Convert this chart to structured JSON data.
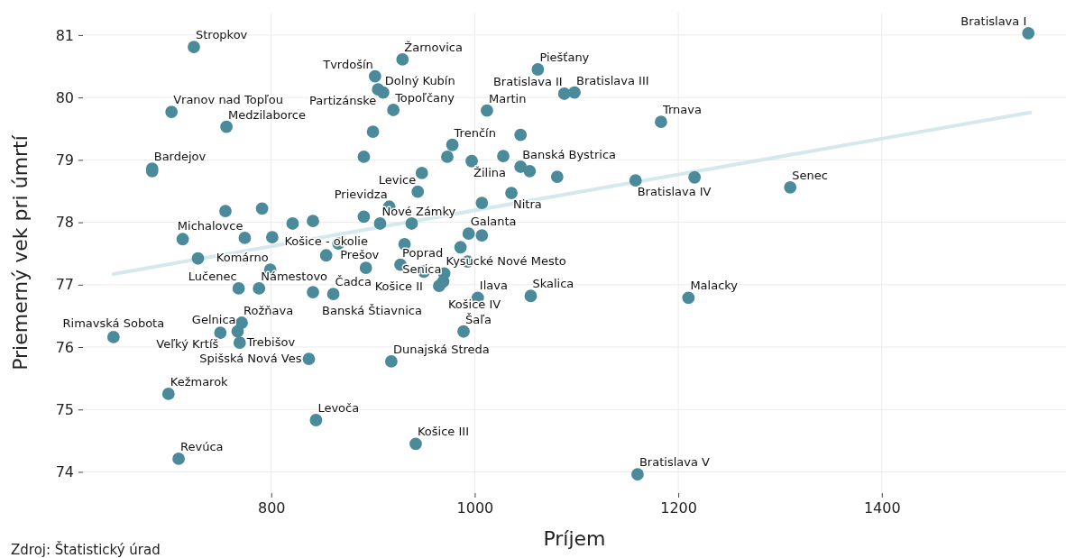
{
  "chart_data": {
    "type": "scatter",
    "xlabel": "Príjem",
    "ylabel": "Priemerný vek pri úmrtí",
    "xlim": [
      615,
      1581
    ],
    "ylim": [
      73.66,
      81.36
    ],
    "xticks": [
      800,
      1000,
      1200,
      1400
    ],
    "yticks": [
      74,
      75,
      76,
      77,
      78,
      79,
      80,
      81
    ],
    "grid": true,
    "series": [
      {
        "type": "line",
        "color": "#d4e8ee",
        "x": [
          645,
          1546
        ],
        "values": [
          77.17,
          79.76
        ]
      },
      {
        "color": "#4a8a9b",
        "marker": "circle",
        "x": [
          724,
          702,
          756,
          683,
          683,
          929,
          902,
          905,
          910,
          920,
          900,
          891,
          978,
          973,
          997,
          948,
          944,
          916,
          1007,
          1012,
          1062,
          1088,
          1098,
          1183,
          1045,
          1028,
          1045,
          1054,
          1081,
          1036,
          1158,
          1216,
          1310,
          1544,
          1210,
          1160,
          1055,
          1003,
          989,
          918,
          942,
          844,
          709,
          699,
          837,
          645,
          750,
          767,
          771,
          769,
          768,
          788,
          841,
          861,
          799,
          854,
          866,
          774,
          801,
          713,
          728,
          755,
          791,
          821,
          841,
          891,
          907,
          938,
          994,
          1007,
          986,
          931,
          927,
          893,
          950,
          970,
          965,
          969,
          993
        ],
        "values": [
          80.81,
          79.77,
          79.53,
          78.86,
          78.82,
          80.61,
          80.34,
          80.13,
          80.08,
          79.8,
          79.45,
          79.05,
          79.24,
          79.05,
          78.98,
          78.79,
          78.49,
          78.25,
          78.31,
          79.79,
          80.45,
          80.06,
          80.08,
          79.61,
          79.4,
          79.06,
          78.89,
          78.82,
          78.73,
          78.47,
          78.67,
          78.72,
          78.56,
          81.03,
          76.79,
          73.96,
          76.82,
          76.79,
          76.25,
          75.77,
          74.45,
          74.83,
          74.21,
          75.25,
          75.81,
          76.16,
          76.23,
          76.25,
          76.39,
          76.07,
          76.94,
          76.94,
          76.88,
          76.85,
          77.24,
          77.47,
          77.66,
          77.75,
          77.76,
          77.73,
          77.42,
          78.18,
          78.22,
          77.98,
          78.02,
          78.09,
          77.98,
          77.98,
          77.82,
          77.79,
          77.6,
          77.65,
          77.32,
          77.27,
          77.21,
          77.18,
          76.98,
          77.05,
          77.37
        ]
      }
    ],
    "annotations": [
      {
        "text": "Stropkov",
        "x": 724,
        "y": 80.81
      },
      {
        "text": "Vranov nad Topľou",
        "x": 702,
        "y": 79.77
      },
      {
        "text": "Medzilaborce",
        "x": 756,
        "y": 79.53
      },
      {
        "text": "Bardejov",
        "x": 683,
        "y": 78.86
      },
      {
        "text": "Žarnovica",
        "x": 929,
        "y": 80.61
      },
      {
        "text": "Tvrdošín",
        "x": 902,
        "y": 80.34
      },
      {
        "text": "Partizánske",
        "x": 905,
        "y": 80.13
      },
      {
        "text": "Dolný Kubín",
        "x": 910,
        "y": 80.08
      },
      {
        "text": "Topoľčany",
        "x": 920,
        "y": 79.8
      },
      {
        "text": "Trenčín",
        "x": 978,
        "y": 79.24
      },
      {
        "text": "Žilina",
        "x": 997,
        "y": 78.98
      },
      {
        "text": "Levice",
        "x": 944,
        "y": 78.49
      },
      {
        "text": "Prievidza",
        "x": 916,
        "y": 78.25
      },
      {
        "text": "Martin",
        "x": 1012,
        "y": 79.79
      },
      {
        "text": "Piešťany",
        "x": 1062,
        "y": 80.45
      },
      {
        "text": "Bratislava II",
        "x": 1088,
        "y": 80.06
      },
      {
        "text": "Bratislava III",
        "x": 1098,
        "y": 80.08
      },
      {
        "text": "Trnava",
        "x": 1183,
        "y": 79.61
      },
      {
        "text": "Banská Bystrica",
        "x": 1045,
        "y": 78.89
      },
      {
        "text": "Nitra",
        "x": 1036,
        "y": 78.47
      },
      {
        "text": "Bratislava IV",
        "x": 1158,
        "y": 78.67
      },
      {
        "text": "Senec",
        "x": 1310,
        "y": 78.56
      },
      {
        "text": "Bratislava I",
        "x": 1544,
        "y": 81.03
      },
      {
        "text": "Malacky",
        "x": 1210,
        "y": 76.79
      },
      {
        "text": "Bratislava V",
        "x": 1160,
        "y": 73.96
      },
      {
        "text": "Skalica",
        "x": 1055,
        "y": 76.82
      },
      {
        "text": "Ilava",
        "x": 1003,
        "y": 76.79
      },
      {
        "text": "Šaľa",
        "x": 989,
        "y": 76.25
      },
      {
        "text": "Dunajská Streda",
        "x": 918,
        "y": 75.77
      },
      {
        "text": "Košice III",
        "x": 942,
        "y": 74.45
      },
      {
        "text": "Levoča",
        "x": 844,
        "y": 74.83
      },
      {
        "text": "Revúca",
        "x": 709,
        "y": 74.21
      },
      {
        "text": "Kežmarok",
        "x": 699,
        "y": 75.25
      },
      {
        "text": "Spišská Nová Ves",
        "x": 837,
        "y": 75.81
      },
      {
        "text": "Rimavská Sobota",
        "x": 645,
        "y": 76.16
      },
      {
        "text": "Veľký Krtíš",
        "x": 750,
        "y": 76.23
      },
      {
        "text": "Gelnica",
        "x": 767,
        "y": 76.25
      },
      {
        "text": "Rožňava",
        "x": 771,
        "y": 76.39
      },
      {
        "text": "Trebišov",
        "x": 769,
        "y": 76.07
      },
      {
        "text": "Lučenec",
        "x": 768,
        "y": 76.94
      },
      {
        "text": "Námestovo",
        "x": 788,
        "y": 76.94
      },
      {
        "text": "Banská Štiavnica",
        "x": 841,
        "y": 76.88
      },
      {
        "text": "Čadca",
        "x": 861,
        "y": 76.85
      },
      {
        "text": "Komárno",
        "x": 799,
        "y": 77.24
      },
      {
        "text": "Košice - okolie",
        "x": 854,
        "y": 77.47
      },
      {
        "text": "Prešov",
        "x": 866,
        "y": 77.66
      },
      {
        "text": "Michalovce",
        "x": 774,
        "y": 77.75
      },
      {
        "text": "Nové Zámky",
        "x": 907,
        "y": 77.98
      },
      {
        "text": "Galanta",
        "x": 994,
        "y": 77.82
      },
      {
        "text": "Poprad",
        "x": 927,
        "y": 77.32
      },
      {
        "text": "Košice II",
        "x": 893,
        "y": 77.27
      },
      {
        "text": "Kysucké Nové Mesto",
        "x": 970,
        "y": 77.18
      },
      {
        "text": "Košice IV",
        "x": 965,
        "y": 76.98
      },
      {
        "text": "Senica",
        "x": 969,
        "y": 77.05
      },
      "Zdroj: Štatistický úrad"
    ]
  }
}
